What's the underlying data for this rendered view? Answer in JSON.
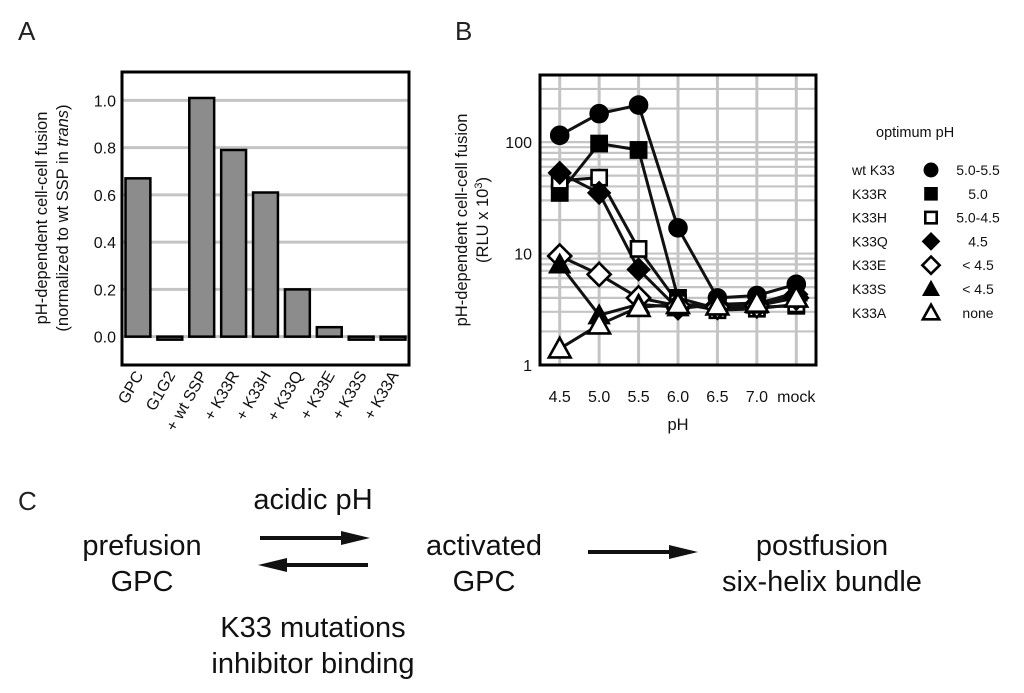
{
  "panels": {
    "a": "A",
    "b": "B",
    "c": "C"
  },
  "chart_data": [
    {
      "type": "bar",
      "ylabel_line1": "pH-dependent cell-cell fusion",
      "ylabel_line2_pre": "(normalized to wt SSP in ",
      "ylabel_line2_italic": "trans",
      "ylabel_line2_post": ")",
      "categories": [
        "GPC",
        "G1G2",
        "+ wt SSP",
        "+ K33R",
        "+ K33H",
        "+ K33Q",
        "+ K33E",
        "+ K33S",
        "+ K33A"
      ],
      "values": [
        0.67,
        -0.01,
        1.01,
        0.79,
        0.61,
        0.2,
        0.04,
        -0.01,
        -0.01
      ],
      "ylim": [
        -0.12,
        1.12
      ],
      "yticks": [
        "0.0",
        "0.2",
        "0.4",
        "0.6",
        "0.8",
        "1.0"
      ],
      "bar_color": "#8c8c8c",
      "grid": true
    },
    {
      "type": "line",
      "ylabel_line1": "pH-dependent cell-cell fusion",
      "ylabel_line2": "(RLU x 10",
      "ylabel_sup": "3",
      "ylabel_close": ")",
      "xlabel": "pH",
      "x": [
        "4.5",
        "5.0",
        "5.5",
        "6.0",
        "6.5",
        "7.0",
        "mock"
      ],
      "yscale": "log",
      "ylim": [
        1,
        400
      ],
      "yticks": [
        "1",
        "10",
        "100"
      ],
      "grid": true,
      "legend_title": "optimum pH",
      "series": [
        {
          "name": "wt K33",
          "optimum": "5.0-5.5",
          "marker": "circle-filled",
          "values": [
            115,
            180,
            215,
            17,
            4.0,
            4.2,
            5.3
          ]
        },
        {
          "name": "K33R",
          "optimum": "5.0",
          "marker": "square-filled",
          "values": [
            35,
            97,
            85,
            4.0,
            3.2,
            3.3,
            3.4
          ]
        },
        {
          "name": "K33H",
          "optimum": "5.0-4.5",
          "marker": "square-open",
          "values": [
            45,
            48,
            11,
            3.6,
            3.1,
            3.2,
            3.5
          ]
        },
        {
          "name": "K33Q",
          "optimum": "4.5",
          "marker": "diamond-filled",
          "values": [
            53,
            35,
            7.2,
            3.2,
            3.5,
            3.6,
            4.3
          ]
        },
        {
          "name": "K33E",
          "optimum": "< 4.5",
          "marker": "diamond-open",
          "values": [
            9.5,
            6.5,
            4.0,
            3.4,
            3.3,
            3.4,
            4.0
          ]
        },
        {
          "name": "K33S",
          "optimum": "< 4.5",
          "marker": "triangle-filled",
          "values": [
            8.0,
            2.8,
            3.5,
            3.3,
            3.4,
            3.5,
            4.5
          ]
        },
        {
          "name": "K33A",
          "optimum": "none",
          "marker": "triangle-open",
          "values": [
            1.4,
            2.3,
            3.3,
            3.5,
            3.4,
            3.6,
            4.0
          ]
        }
      ]
    }
  ],
  "schematic": {
    "prefusion_line1": "prefusion",
    "prefusion_line2": "GPC",
    "forward_label": "acidic pH",
    "activated_line1": "activated",
    "activated_line2": "GPC",
    "postfusion_line1": "postfusion",
    "postfusion_line2": "six-helix bundle",
    "reverse_line1": "K33 mutations",
    "reverse_line2": "inhibitor binding"
  }
}
